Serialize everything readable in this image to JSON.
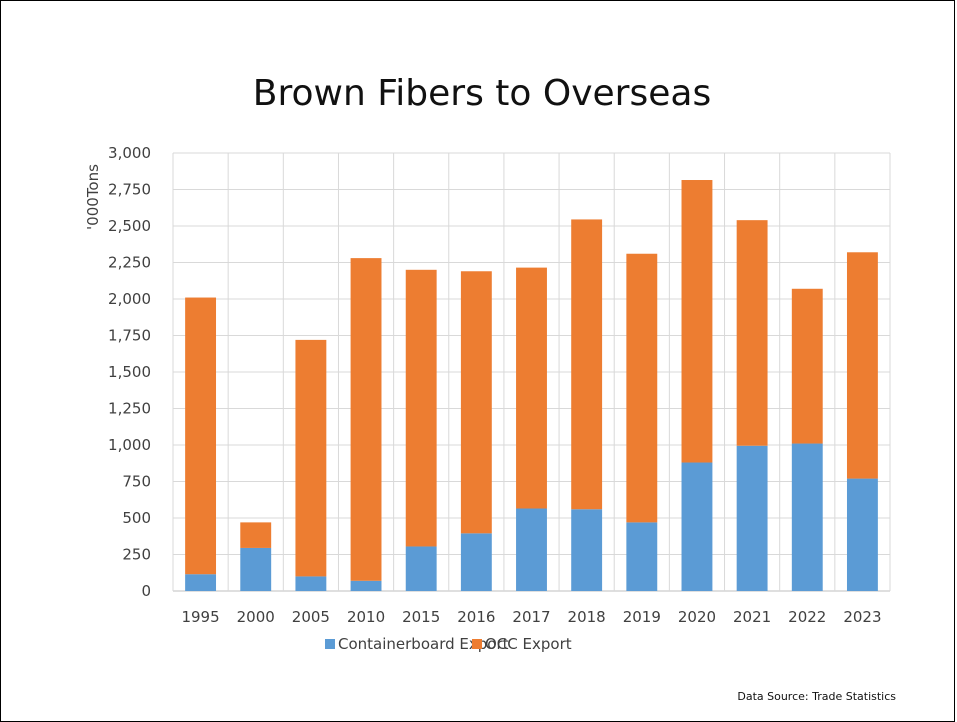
{
  "chart_data": {
    "type": "bar",
    "stacked": true,
    "title": "Brown Fibers to Overseas",
    "ylabel": "'000Tons",
    "xlabel": "",
    "ylim": [
      0,
      3000
    ],
    "yticks": [
      0,
      250,
      500,
      750,
      1000,
      1250,
      1500,
      1750,
      2000,
      2250,
      2500,
      2750,
      3000
    ],
    "ytick_labels": [
      "0",
      "250",
      "500",
      "750",
      "1,000",
      "1,250",
      "1,500",
      "1,750",
      "2,000",
      "2,250",
      "2,500",
      "2,750",
      "3,000"
    ],
    "categories": [
      "1995",
      "2000",
      "2005",
      "2010",
      "2015",
      "2016",
      "2017",
      "2018",
      "2019",
      "2020",
      "2021",
      "2022",
      "2023"
    ],
    "series": [
      {
        "name": "Containerboard Export",
        "color": "#5b9bd5",
        "values": [
          115,
          295,
          100,
          70,
          305,
          395,
          565,
          560,
          470,
          880,
          995,
          1010,
          770
        ]
      },
      {
        "name": "OCC Export",
        "color": "#ed7d31",
        "values": [
          1895,
          175,
          1620,
          2210,
          1895,
          1795,
          1650,
          1985,
          1840,
          1935,
          1545,
          1060,
          1550
        ]
      }
    ],
    "grid": true,
    "legend_position": "bottom"
  },
  "source_note": "Data Source: Trade Statistics"
}
